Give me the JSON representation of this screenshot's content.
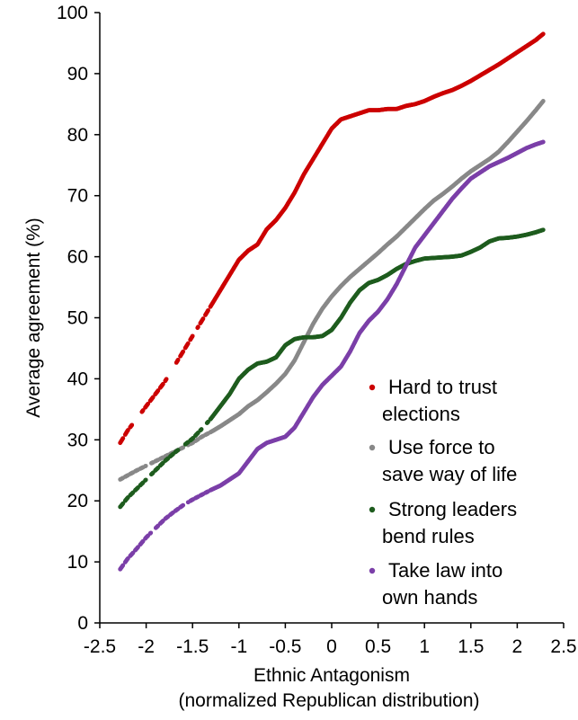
{
  "chart_data": {
    "type": "scatter",
    "title": "",
    "xlabel": "Ethnic Antagonism",
    "xlabel_line2": "(normalized Republican distribution)",
    "ylabel": "Average agreement (%)",
    "xlim": [
      -2.5,
      2.5
    ],
    "ylim": [
      0,
      100
    ],
    "x_ticks": [
      "-2.5",
      "-2",
      "-1.5",
      "-1",
      "-0.5",
      "0",
      "0.5",
      "1",
      "1.5",
      "2",
      "2.5"
    ],
    "y_ticks": [
      "0",
      "10",
      "20",
      "30",
      "40",
      "50",
      "60",
      "70",
      "80",
      "90",
      "100"
    ],
    "grid": false,
    "legend_position": "bottom-right",
    "series": [
      {
        "name": "Hard to trust elections",
        "legend_line1": "Hard to trust",
        "legend_line2": "elections",
        "color": "#cc0000",
        "points": [
          [
            -2.28,
            29.5
          ],
          [
            -2.2,
            31.5
          ],
          [
            -2.1,
            33.5
          ],
          [
            -2.0,
            35.5
          ],
          [
            -1.9,
            37.5
          ],
          [
            -1.8,
            39.5
          ],
          [
            -1.7,
            42
          ],
          [
            -1.6,
            44.5
          ],
          [
            -1.5,
            47
          ],
          [
            -1.4,
            49.5
          ],
          [
            -1.3,
            52
          ],
          [
            -1.2,
            54.5
          ],
          [
            -1.1,
            57
          ],
          [
            -1.0,
            59.5
          ],
          [
            -0.9,
            61
          ],
          [
            -0.8,
            62
          ],
          [
            -0.7,
            64.5
          ],
          [
            -0.6,
            66
          ],
          [
            -0.5,
            68
          ],
          [
            -0.4,
            70.5
          ],
          [
            -0.3,
            73.5
          ],
          [
            -0.2,
            76
          ],
          [
            -0.1,
            78.5
          ],
          [
            0.0,
            81
          ],
          [
            0.1,
            82.5
          ],
          [
            0.2,
            83
          ],
          [
            0.3,
            83.5
          ],
          [
            0.4,
            84
          ],
          [
            0.5,
            84
          ],
          [
            0.6,
            84.2
          ],
          [
            0.7,
            84.2
          ],
          [
            0.8,
            84.7
          ],
          [
            0.9,
            85
          ],
          [
            1.0,
            85.5
          ],
          [
            1.1,
            86.2
          ],
          [
            1.2,
            86.8
          ],
          [
            1.3,
            87.3
          ],
          [
            1.4,
            88
          ],
          [
            1.5,
            88.8
          ],
          [
            1.6,
            89.7
          ],
          [
            1.7,
            90.6
          ],
          [
            1.8,
            91.5
          ],
          [
            1.9,
            92.5
          ],
          [
            2.0,
            93.5
          ],
          [
            2.1,
            94.5
          ],
          [
            2.2,
            95.5
          ],
          [
            2.28,
            96.5
          ]
        ],
        "gaps": [
          [
            -2.15,
            -2.05
          ],
          [
            -1.78,
            -1.68
          ],
          [
            -1.5,
            -1.45
          ]
        ]
      },
      {
        "name": "Use force to save way of life",
        "legend_line1": "Use force to",
        "legend_line2": "save way of life",
        "color": "#888888",
        "points": [
          [
            -2.28,
            23.5
          ],
          [
            -2.1,
            25
          ],
          [
            -1.9,
            26.5
          ],
          [
            -1.7,
            28
          ],
          [
            -1.5,
            29.5
          ],
          [
            -1.4,
            30.5
          ],
          [
            -1.3,
            31.3
          ],
          [
            -1.2,
            32.2
          ],
          [
            -1.1,
            33.2
          ],
          [
            -1.0,
            34.2
          ],
          [
            -0.9,
            35.5
          ],
          [
            -0.8,
            36.5
          ],
          [
            -0.7,
            37.8
          ],
          [
            -0.6,
            39.2
          ],
          [
            -0.5,
            40.8
          ],
          [
            -0.4,
            43
          ],
          [
            -0.3,
            46
          ],
          [
            -0.2,
            49
          ],
          [
            -0.1,
            51.5
          ],
          [
            0.0,
            53.5
          ],
          [
            0.1,
            55.2
          ],
          [
            0.2,
            56.7
          ],
          [
            0.3,
            58
          ],
          [
            0.4,
            59.3
          ],
          [
            0.5,
            60.6
          ],
          [
            0.6,
            62
          ],
          [
            0.7,
            63.3
          ],
          [
            0.8,
            64.8
          ],
          [
            0.9,
            66.3
          ],
          [
            1.0,
            67.8
          ],
          [
            1.1,
            69.2
          ],
          [
            1.2,
            70.3
          ],
          [
            1.3,
            71.5
          ],
          [
            1.4,
            72.8
          ],
          [
            1.5,
            74
          ],
          [
            1.6,
            75
          ],
          [
            1.7,
            76
          ],
          [
            1.8,
            77.2
          ],
          [
            1.9,
            78.8
          ],
          [
            2.0,
            80.5
          ],
          [
            2.1,
            82.2
          ],
          [
            2.2,
            84
          ],
          [
            2.28,
            85.5
          ]
        ],
        "gaps": [
          [
            -2.0,
            -1.95
          ],
          [
            -1.6,
            -1.55
          ]
        ]
      },
      {
        "name": "Strong leaders bend rules",
        "legend_line1": "Strong leaders",
        "legend_line2": "bend rules",
        "color": "#1e5c1e",
        "points": [
          [
            -2.28,
            19
          ],
          [
            -2.2,
            20.5
          ],
          [
            -2.1,
            22
          ],
          [
            -2.0,
            23.5
          ],
          [
            -1.9,
            25
          ],
          [
            -1.8,
            26.5
          ],
          [
            -1.7,
            27.8
          ],
          [
            -1.6,
            29
          ],
          [
            -1.5,
            30.2
          ],
          [
            -1.4,
            31.8
          ],
          [
            -1.3,
            33.5
          ],
          [
            -1.2,
            35.5
          ],
          [
            -1.1,
            37.5
          ],
          [
            -1.0,
            40
          ],
          [
            -0.9,
            41.5
          ],
          [
            -0.8,
            42.5
          ],
          [
            -0.7,
            42.8
          ],
          [
            -0.6,
            43.5
          ],
          [
            -0.5,
            45.5
          ],
          [
            -0.4,
            46.5
          ],
          [
            -0.3,
            46.8
          ],
          [
            -0.2,
            46.8
          ],
          [
            -0.1,
            47
          ],
          [
            0.0,
            48
          ],
          [
            0.1,
            50
          ],
          [
            0.2,
            52.5
          ],
          [
            0.3,
            54.5
          ],
          [
            0.4,
            55.7
          ],
          [
            0.5,
            56.2
          ],
          [
            0.6,
            57
          ],
          [
            0.7,
            58
          ],
          [
            0.8,
            58.8
          ],
          [
            0.9,
            59.3
          ],
          [
            1.0,
            59.7
          ],
          [
            1.1,
            59.8
          ],
          [
            1.2,
            59.9
          ],
          [
            1.3,
            60
          ],
          [
            1.4,
            60.2
          ],
          [
            1.5,
            60.8
          ],
          [
            1.6,
            61.5
          ],
          [
            1.7,
            62.5
          ],
          [
            1.8,
            63
          ],
          [
            1.9,
            63.1
          ],
          [
            2.0,
            63.3
          ],
          [
            2.1,
            63.6
          ],
          [
            2.2,
            64
          ],
          [
            2.28,
            64.4
          ]
        ],
        "gaps": [
          [
            -2.0,
            -1.95
          ],
          [
            -1.65,
            -1.6
          ],
          [
            -1.4,
            -1.35
          ]
        ]
      },
      {
        "name": "Take law into own hands",
        "legend_line1": "Take law into",
        "legend_line2": "own hands",
        "color": "#7b3fa8",
        "points": [
          [
            -2.28,
            8.8
          ],
          [
            -2.2,
            10.5
          ],
          [
            -2.1,
            12.2
          ],
          [
            -2.0,
            14
          ],
          [
            -1.9,
            15.5
          ],
          [
            -1.8,
            17
          ],
          [
            -1.7,
            18.2
          ],
          [
            -1.6,
            19.3
          ],
          [
            -1.5,
            20.2
          ],
          [
            -1.4,
            21
          ],
          [
            -1.3,
            21.8
          ],
          [
            -1.2,
            22.5
          ],
          [
            -1.1,
            23.5
          ],
          [
            -1.0,
            24.5
          ],
          [
            -0.9,
            26.5
          ],
          [
            -0.8,
            28.5
          ],
          [
            -0.7,
            29.5
          ],
          [
            -0.6,
            30
          ],
          [
            -0.5,
            30.5
          ],
          [
            -0.4,
            32
          ],
          [
            -0.3,
            34.5
          ],
          [
            -0.2,
            37
          ],
          [
            -0.1,
            39
          ],
          [
            0.0,
            40.5
          ],
          [
            0.1,
            42
          ],
          [
            0.2,
            44.5
          ],
          [
            0.3,
            47.5
          ],
          [
            0.4,
            49.5
          ],
          [
            0.5,
            51
          ],
          [
            0.6,
            53
          ],
          [
            0.7,
            55.5
          ],
          [
            0.8,
            58.5
          ],
          [
            0.9,
            61.5
          ],
          [
            1.0,
            63.5
          ],
          [
            1.1,
            65.5
          ],
          [
            1.2,
            67.5
          ],
          [
            1.3,
            69.5
          ],
          [
            1.4,
            71.2
          ],
          [
            1.5,
            72.8
          ],
          [
            1.6,
            73.8
          ],
          [
            1.7,
            74.8
          ],
          [
            1.8,
            75.5
          ],
          [
            1.9,
            76.2
          ],
          [
            2.0,
            77
          ],
          [
            2.1,
            77.8
          ],
          [
            2.2,
            78.4
          ],
          [
            2.28,
            78.8
          ]
        ],
        "gaps": [
          [
            -1.95,
            -1.9
          ],
          [
            -1.6,
            -1.55
          ]
        ]
      }
    ]
  }
}
